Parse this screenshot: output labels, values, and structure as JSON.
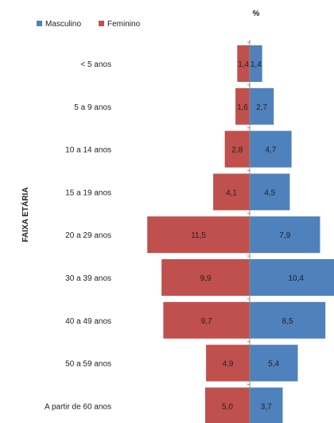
{
  "chart_data": {
    "type": "bar",
    "orientation": "horizontal",
    "layout": "population-pyramid",
    "unit_label": "%",
    "ylabel": "FAIXA ETÁRIA",
    "categories": [
      "< 5 anos",
      "5 a 9 anos",
      "10 a 14 anos",
      "15 a 19 anos",
      "20 a 29 anos",
      "30 a 39 anos",
      "40 a 49 anos",
      "50 a 59 anos",
      "A partir de 60 anos"
    ],
    "series": [
      {
        "name": "Masculino",
        "color": "#4f81bd",
        "side": "right",
        "values": [
          1.4,
          2.7,
          4.7,
          4.5,
          7.9,
          10.4,
          8.5,
          5.4,
          3.7
        ],
        "labels": [
          "1,4",
          "2,7",
          "4,7",
          "4,5",
          "7,9",
          "10,4",
          "8,5",
          "5,4",
          "3,7"
        ]
      },
      {
        "name": "Feminino",
        "color": "#c0504d",
        "side": "left",
        "values": [
          1.4,
          1.6,
          2.8,
          4.1,
          11.5,
          9.9,
          9.7,
          4.9,
          5.0
        ],
        "labels": [
          "1,4",
          "1,6",
          "2,8",
          "4,1",
          "11,5",
          "9,9",
          "9,7",
          "4,9",
          "5,0"
        ]
      }
    ],
    "legend_position": "top-left",
    "grid": false
  }
}
